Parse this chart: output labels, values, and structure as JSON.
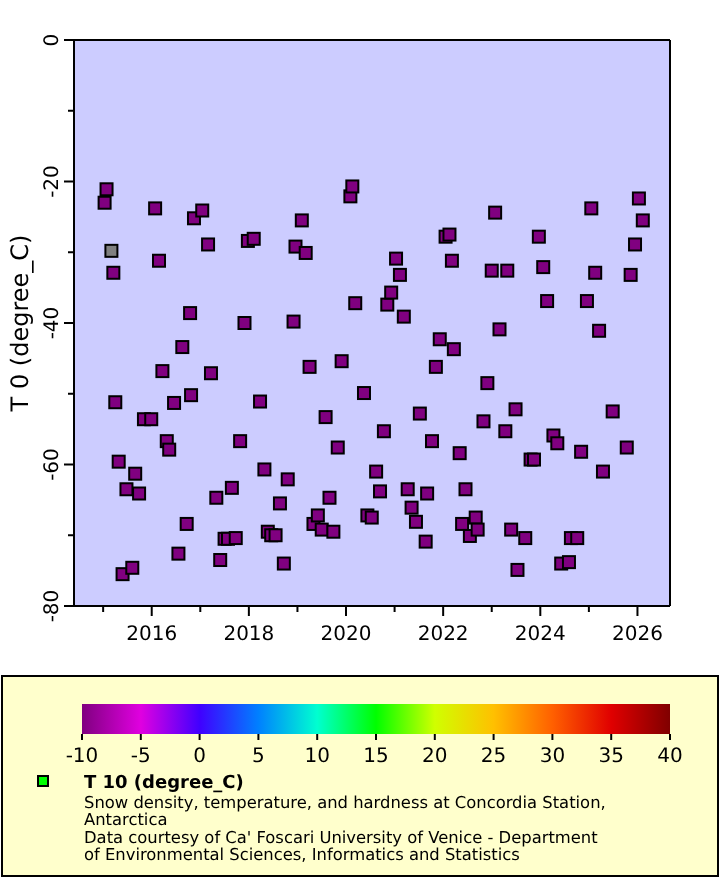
{
  "chart_data": {
    "type": "scatter",
    "ylabel": "T 0 (degree_C)",
    "clabel": "T 10 (degree_C)",
    "x": [
      2015.03,
      2015.07,
      2015.17,
      2015.21,
      2015.25,
      2015.32,
      2015.4,
      2015.48,
      2015.6,
      2015.66,
      2015.74,
      2015.84,
      2015.99,
      2016.07,
      2016.15,
      2016.22,
      2016.31,
      2016.36,
      2016.46,
      2016.55,
      2016.63,
      2016.72,
      2016.79,
      2016.81,
      2016.87,
      2017.04,
      2017.16,
      2017.22,
      2017.33,
      2017.41,
      2017.5,
      2017.57,
      2017.65,
      2017.73,
      2017.82,
      2017.91,
      2017.98,
      2018.1,
      2018.23,
      2018.32,
      2018.39,
      2018.46,
      2018.55,
      2018.64,
      2018.72,
      2018.8,
      2018.92,
      2018.96,
      2019.09,
      2019.17,
      2019.25,
      2019.33,
      2019.42,
      2019.5,
      2019.58,
      2019.66,
      2019.74,
      2019.83,
      2019.91,
      2020.09,
      2020.13,
      2020.19,
      2020.37,
      2020.44,
      2020.53,
      2020.62,
      2020.7,
      2020.78,
      2020.85,
      2020.93,
      2021.03,
      2021.11,
      2021.19,
      2021.27,
      2021.35,
      2021.44,
      2021.52,
      2021.64,
      2021.67,
      2021.77,
      2021.85,
      2021.93,
      2022.05,
      2022.13,
      2022.18,
      2022.22,
      2022.34,
      2022.39,
      2022.46,
      2022.55,
      2022.67,
      2022.71,
      2022.83,
      2022.91,
      2023.0,
      2023.07,
      2023.16,
      2023.28,
      2023.32,
      2023.4,
      2023.49,
      2023.53,
      2023.69,
      2023.8,
      2023.87,
      2023.97,
      2024.06,
      2024.14,
      2024.27,
      2024.35,
      2024.43,
      2024.59,
      2024.63,
      2024.76,
      2024.84,
      2024.96,
      2025.05,
      2025.13,
      2025.21,
      2025.29,
      2025.49,
      2025.78,
      2025.86,
      2025.95,
      2026.03,
      2026.11
    ],
    "values": [
      -23.0,
      -21.1,
      -29.8,
      -32.9,
      -51.2,
      -59.6,
      -75.5,
      -63.5,
      -74.6,
      -61.3,
      -64.1,
      -53.6,
      -53.6,
      -23.8,
      -31.2,
      -46.8,
      -56.7,
      -57.9,
      -51.3,
      -72.6,
      -43.4,
      -68.4,
      -38.6,
      -50.2,
      -25.2,
      -24.1,
      -28.9,
      -47.1,
      -64.7,
      -73.5,
      -70.5,
      -70.5,
      -63.3,
      -70.4,
      -56.7,
      -40.0,
      -28.4,
      -28.1,
      -51.1,
      -60.7,
      -69.5,
      -70.0,
      -70.0,
      -65.5,
      -74.0,
      -62.1,
      -39.8,
      -29.2,
      -25.5,
      -30.1,
      -46.2,
      -68.4,
      -67.2,
      -69.2,
      -53.3,
      -64.7,
      -69.5,
      -57.6,
      -45.4,
      -22.1,
      -20.7,
      -37.2,
      -49.9,
      -67.2,
      -67.5,
      -61.0,
      -63.8,
      -55.3,
      -37.4,
      -35.7,
      -30.9,
      -33.2,
      -39.1,
      -63.5,
      -66.1,
      -68.1,
      -52.8,
      -70.9,
      -64.1,
      -56.7,
      -46.2,
      -42.3,
      -27.8,
      -27.5,
      -31.2,
      -43.7,
      -58.4,
      -68.4,
      -63.5,
      -70.1,
      -67.5,
      -69.2,
      -53.9,
      -48.5,
      -32.6,
      -24.4,
      -40.9,
      -55.3,
      -32.6,
      -69.2,
      -52.2,
      -74.9,
      -70.4,
      -59.3,
      -59.3,
      -27.8,
      -32.1,
      -36.9,
      -55.9,
      -57.0,
      -74.0,
      -73.8,
      -70.4,
      -70.4,
      -58.2,
      -36.9,
      -23.8,
      -32.9,
      -41.1,
      -61.0,
      -52.5,
      -57.6,
      -33.2,
      -28.9,
      -22.4,
      -25.5
    ],
    "cvalues": [
      -10,
      -10,
      null,
      -10,
      -10,
      -10,
      -10,
      -10,
      -10,
      -10,
      -10,
      -10,
      -10,
      -10,
      -10,
      -10,
      -10,
      -10,
      -10,
      -10,
      -10,
      -10,
      -10,
      -10,
      -10,
      -10,
      -10,
      -10,
      -10,
      -10,
      -10,
      -10,
      -10,
      -10,
      -10,
      -10,
      -10,
      -10,
      -10,
      -10,
      -10,
      -10,
      -10,
      -10,
      -10,
      -10,
      -10,
      -10,
      -10,
      -10,
      -10,
      -10,
      -10,
      -10,
      -10,
      -10,
      -10,
      -10,
      -10,
      -10,
      -10,
      -10,
      -10,
      -10,
      -10,
      -10,
      -10,
      -10,
      -10,
      -10,
      -10,
      -10,
      -10,
      -10,
      -10,
      -10,
      -10,
      -10,
      -10,
      -10,
      -10,
      -10,
      -10,
      -10,
      -10,
      -10,
      -10,
      -10,
      -10,
      -10,
      -10,
      -10,
      -10,
      -10,
      -10,
      -10,
      -10,
      -10,
      -10,
      -10,
      -10,
      -10,
      -10,
      -10,
      -10,
      -10,
      -10,
      -10,
      -10,
      -10,
      -10,
      -10,
      -10,
      -10,
      -10,
      -10,
      -10,
      -10,
      -10,
      -10,
      -10,
      -10,
      -10,
      -10,
      -10,
      -10
    ],
    "marker": "square",
    "xlim": [
      2014.4,
      2026.67
    ],
    "xticks": [
      {
        "value": 2015,
        "label": null
      },
      2016,
      {
        "value": 2017,
        "label": null
      },
      2018,
      {
        "value": 2019,
        "label": null
      },
      2020,
      {
        "value": 2021,
        "label": null
      },
      2022,
      {
        "value": 2023,
        "label": null
      },
      2024,
      {
        "value": 2025,
        "label": null
      },
      2026
    ],
    "ylim": [
      -80,
      0
    ],
    "yticks": [
      -80,
      {
        "value": -70,
        "label": null
      },
      -60,
      {
        "value": -50,
        "label": null
      },
      -40,
      {
        "value": -30,
        "label": null
      },
      -20,
      {
        "value": -10,
        "label": null
      },
      0
    ],
    "clim": [
      -10,
      40
    ],
    "cticks": [
      -10,
      -5,
      0,
      5,
      10,
      15,
      20,
      25,
      30,
      35,
      40
    ],
    "annotations": [
      "Snow density, temperature, and hardness at Concordia Station, Antarctica",
      "Data courtesy of Ca' Foscari University of Venice - Department of Environmental Sciences, Informatics and Statistics"
    ]
  }
}
